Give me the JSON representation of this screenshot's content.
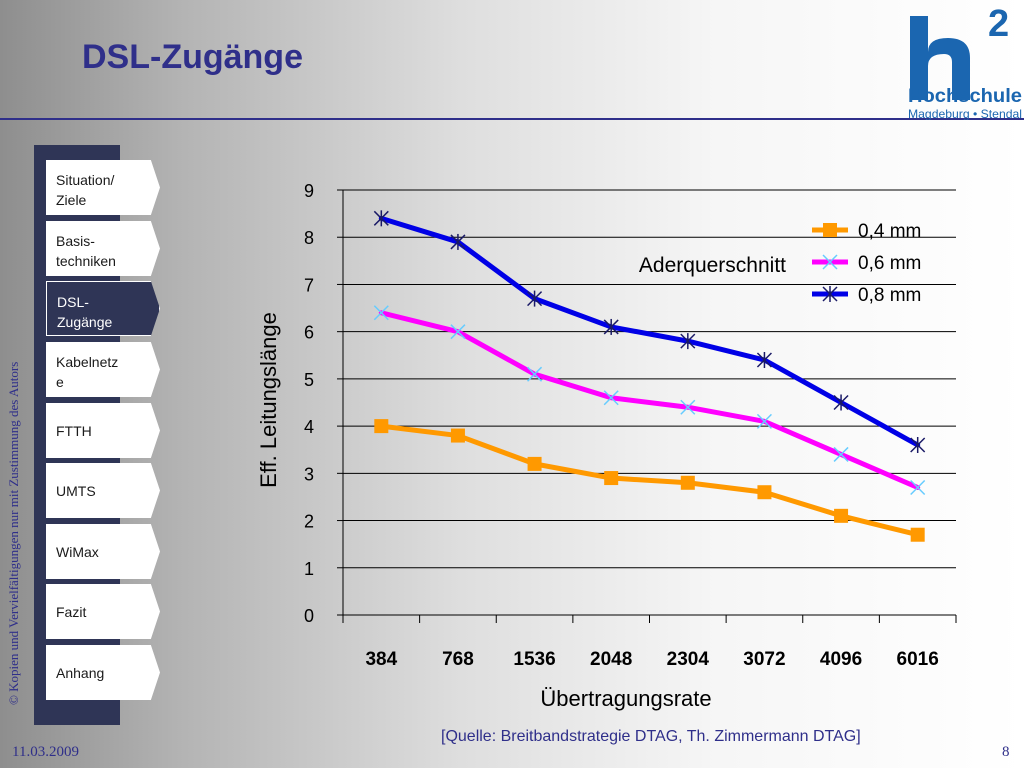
{
  "slide": {
    "title": "DSL-Zugänge",
    "copyright": "© Kopien und Vervielfältigungen nur mit Zustimmung des Autors",
    "source": "[Quelle: Breitbandstrategie DTAG, Th. Zimmermann DTAG]",
    "date": "11.03.2009",
    "page_number": "8"
  },
  "logo": {
    "superscript": "2",
    "line1": "Hochschule",
    "line2": "Magdeburg • Stendal",
    "color": "#1b66b0"
  },
  "nav": {
    "items": [
      {
        "label": "Situation/\nZiele",
        "active": false
      },
      {
        "label": "Basis-\ntechniken",
        "active": false
      },
      {
        "label": "DSL-\nZugänge",
        "active": true
      },
      {
        "label": "Kabelnetz\ne",
        "active": false
      },
      {
        "label": "FTTH",
        "active": false
      },
      {
        "label": "UMTS",
        "active": false
      },
      {
        "label": "WiMax",
        "active": false
      },
      {
        "label": "Fazit",
        "active": false
      },
      {
        "label": "Anhang",
        "active": false
      }
    ]
  },
  "chart_data": {
    "type": "line",
    "title": "",
    "xlabel": "Übertragungsrate",
    "ylabel": "Eff. Leitungslänge",
    "categories": [
      "384",
      "768",
      "1536",
      "2048",
      "2304",
      "3072",
      "4096",
      "6016"
    ],
    "ylim": [
      0,
      9
    ],
    "yticks": [
      "0",
      "1",
      "2",
      "3",
      "4",
      "5",
      "6",
      "7",
      "8",
      "9"
    ],
    "grid": true,
    "legend_title": "Aderquerschnitt",
    "legend_position": "top-right",
    "series": [
      {
        "name": "0,4 mm",
        "color": "#ff9900",
        "marker": "square",
        "values": [
          4.0,
          3.8,
          3.2,
          2.9,
          2.8,
          2.6,
          2.1,
          1.7
        ]
      },
      {
        "name": "0,6 mm",
        "color": "#ff00ff",
        "marker": "x",
        "marker_color": "#66ccff",
        "values": [
          6.4,
          6.0,
          5.1,
          4.6,
          4.4,
          4.1,
          3.4,
          2.7
        ]
      },
      {
        "name": "0,8 mm",
        "color": "#0000e6",
        "marker": "star",
        "marker_color": "#1a1a66",
        "values": [
          8.4,
          7.9,
          6.7,
          6.1,
          5.8,
          5.4,
          4.5,
          3.6
        ]
      }
    ]
  }
}
